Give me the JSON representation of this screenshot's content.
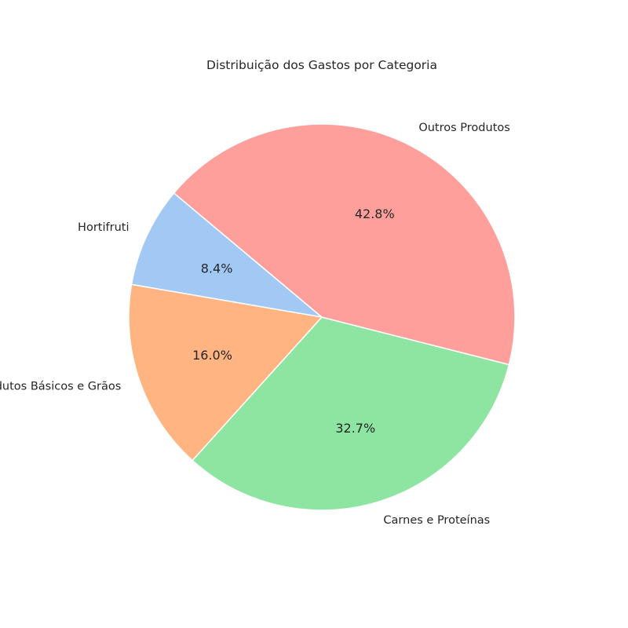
{
  "chart_data": {
    "type": "pie",
    "title": "Distribuição dos Gastos por Categoria",
    "categories": [
      "Hortifruti",
      "Produtos Básicos e Grãos",
      "Carnes e Proteínas",
      "Outros Produtos"
    ],
    "values": [
      8.4,
      16.0,
      32.7,
      42.8
    ],
    "value_labels": [
      "8.4%",
      "16.0%",
      "32.7%",
      "42.8%"
    ],
    "colors": [
      "#a1c9f4",
      "#ffb482",
      "#8de5a1",
      "#ff9f9b"
    ],
    "start_angle_deg": 140,
    "direction": "counterclockwise",
    "legend": "none"
  }
}
